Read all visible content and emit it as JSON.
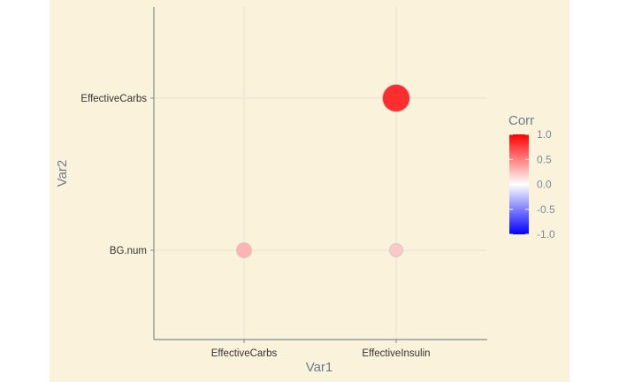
{
  "chart_data": {
    "type": "scatter",
    "subtype": "correlation-bubble",
    "x_categories": [
      "EffectiveCarbs",
      "EffectiveInsulin"
    ],
    "y_categories": [
      "BG.num",
      "EffectiveCarbs"
    ],
    "xlabel": "Var1",
    "ylabel": "Var2",
    "points": [
      {
        "x": "EffectiveInsulin",
        "y": "EffectiveCarbs",
        "corr": 0.82
      },
      {
        "x": "EffectiveCarbs",
        "y": "BG.num",
        "corr": 0.3
      },
      {
        "x": "EffectiveInsulin",
        "y": "BG.num",
        "corr": 0.22
      }
    ],
    "legend": {
      "title": "Corr",
      "position": "right",
      "limits": [
        -1,
        1
      ],
      "breaks": [
        1,
        0.5,
        0,
        -0.5,
        -1
      ],
      "break_labels": [
        "1.0",
        "0.5",
        "0.0",
        "-0.5",
        "-1.0"
      ],
      "colors": {
        "low": "#0000ff",
        "mid": "#ffffff",
        "high": "#ff0000"
      }
    },
    "grid": true,
    "colors": {
      "background": "#fbf2dc",
      "gridline": "#e8e3d4",
      "axis": "#7f8a8f",
      "point_stroke": "#cccccc"
    }
  }
}
